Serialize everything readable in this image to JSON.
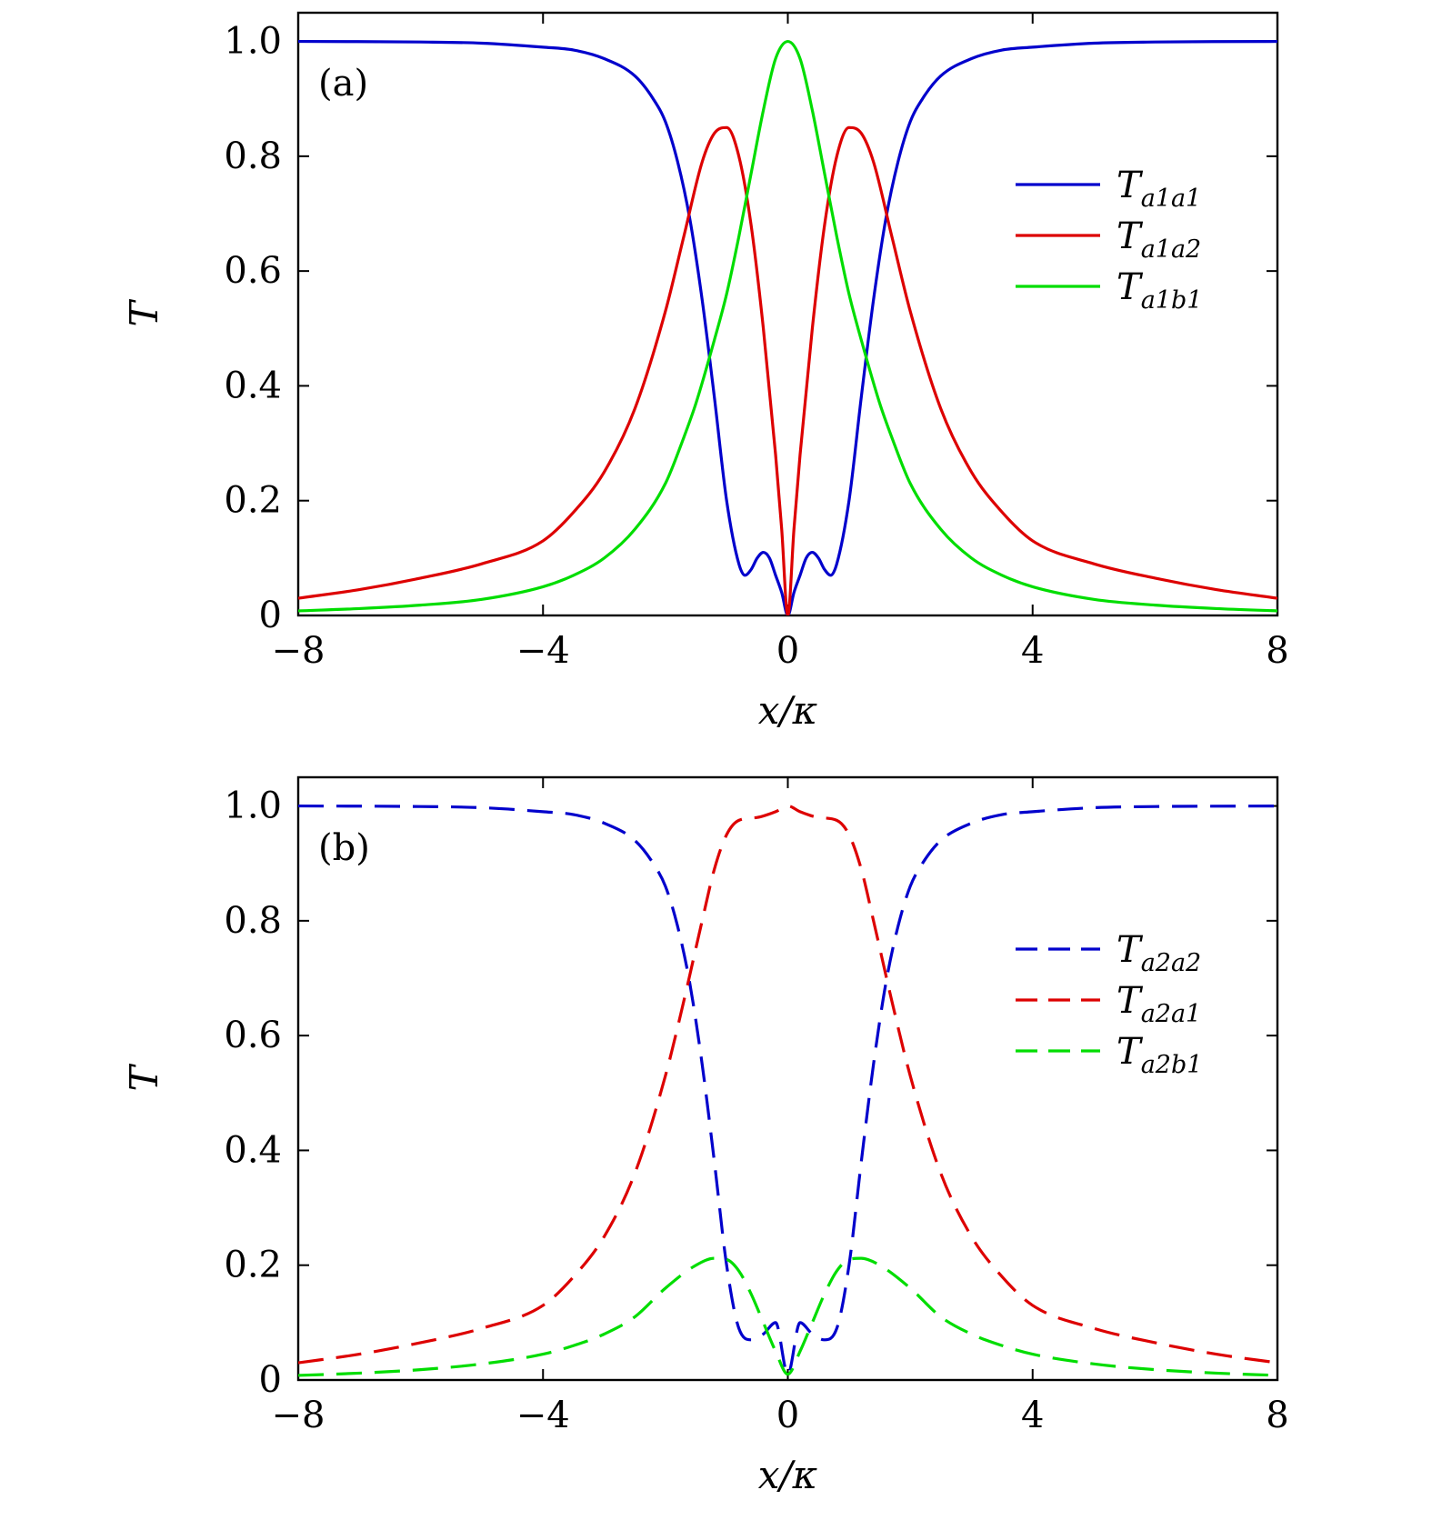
{
  "chart_data": [
    {
      "type": "line",
      "panel_label": "(a)",
      "xlabel": "x/κ",
      "ylabel": "T",
      "xlim": [
        -8,
        8
      ],
      "ylim": [
        0,
        1.05
      ],
      "xticks": [
        -8,
        -4,
        0,
        4,
        8
      ],
      "xtick_labels": [
        "−8",
        "−4",
        "0",
        "4",
        "8"
      ],
      "yticks": [
        0,
        0.2,
        0.4,
        0.6,
        0.8,
        1.0
      ],
      "ytick_labels": [
        "0",
        "0.2",
        "0.4",
        "0.6",
        "0.8",
        "1.0"
      ],
      "grid": false,
      "legend_position": "right",
      "series": [
        {
          "name": "T_{a1a1}",
          "name_main": "T",
          "name_sub": "a1a1",
          "color": "#0000cc",
          "dash": "solid",
          "x": [
            -8,
            -6,
            -5,
            -4,
            -3.5,
            -3,
            -2.5,
            -2.2,
            -2,
            -1.8,
            -1.6,
            -1.4,
            -1.2,
            -1,
            -0.8,
            -0.7,
            -0.6,
            -0.5,
            -0.4,
            -0.3,
            -0.2,
            -0.1,
            0,
            0.1,
            0.2,
            0.3,
            0.4,
            0.5,
            0.6,
            0.7,
            0.8,
            1,
            1.2,
            1.4,
            1.6,
            1.8,
            2,
            2.2,
            2.5,
            3,
            3.5,
            4,
            5,
            6,
            8
          ],
          "y": [
            1.0,
            0.999,
            0.997,
            0.99,
            0.985,
            0.97,
            0.94,
            0.9,
            0.86,
            0.79,
            0.69,
            0.55,
            0.38,
            0.2,
            0.09,
            0.07,
            0.08,
            0.1,
            0.11,
            0.1,
            0.07,
            0.04,
            0.0,
            0.04,
            0.07,
            0.1,
            0.11,
            0.1,
            0.08,
            0.07,
            0.09,
            0.2,
            0.38,
            0.55,
            0.69,
            0.79,
            0.86,
            0.9,
            0.94,
            0.97,
            0.985,
            0.99,
            0.997,
            0.999,
            1.0
          ]
        },
        {
          "name": "T_{a1a2}",
          "name_main": "T",
          "name_sub": "a1a2",
          "color": "#dd0000",
          "dash": "solid",
          "x": [
            -8,
            -7,
            -6,
            -5,
            -4,
            -3.5,
            -3,
            -2.5,
            -2,
            -1.7,
            -1.4,
            -1.2,
            -1,
            -0.8,
            -0.6,
            -0.4,
            -0.2,
            -0.1,
            0,
            0.1,
            0.2,
            0.4,
            0.6,
            0.8,
            1,
            1.2,
            1.4,
            1.7,
            2,
            2.5,
            3,
            3.5,
            4,
            5,
            6,
            7,
            8
          ],
          "y": [
            0.03,
            0.045,
            0.065,
            0.09,
            0.13,
            0.18,
            0.25,
            0.36,
            0.53,
            0.66,
            0.79,
            0.84,
            0.85,
            0.8,
            0.68,
            0.5,
            0.28,
            0.15,
            0.0,
            0.15,
            0.28,
            0.5,
            0.68,
            0.8,
            0.85,
            0.84,
            0.79,
            0.66,
            0.53,
            0.36,
            0.25,
            0.18,
            0.13,
            0.09,
            0.065,
            0.045,
            0.03
          ]
        },
        {
          "name": "T_{a1b1}",
          "name_main": "T",
          "name_sub": "a1b1",
          "color": "#00dd00",
          "dash": "solid",
          "x": [
            -8,
            -7,
            -6,
            -5,
            -4,
            -3.5,
            -3,
            -2.5,
            -2,
            -1.7,
            -1.5,
            -1.2,
            -1,
            -0.8,
            -0.6,
            -0.4,
            -0.2,
            0,
            0.2,
            0.4,
            0.6,
            0.8,
            1,
            1.2,
            1.5,
            1.7,
            2,
            2.5,
            3,
            3.5,
            4,
            5,
            6,
            7,
            8
          ],
          "y": [
            0.008,
            0.012,
            0.018,
            0.028,
            0.05,
            0.07,
            0.1,
            0.15,
            0.23,
            0.31,
            0.37,
            0.48,
            0.56,
            0.66,
            0.77,
            0.88,
            0.97,
            1.0,
            0.97,
            0.88,
            0.77,
            0.66,
            0.56,
            0.48,
            0.37,
            0.31,
            0.23,
            0.15,
            0.1,
            0.07,
            0.05,
            0.028,
            0.018,
            0.012,
            0.008
          ]
        }
      ]
    },
    {
      "type": "line",
      "panel_label": "(b)",
      "xlabel": "x/κ",
      "ylabel": "T",
      "xlim": [
        -8,
        8
      ],
      "ylim": [
        0,
        1.05
      ],
      "xticks": [
        -8,
        -4,
        0,
        4,
        8
      ],
      "xtick_labels": [
        "−8",
        "−4",
        "0",
        "4",
        "8"
      ],
      "yticks": [
        0,
        0.2,
        0.4,
        0.6,
        0.8,
        1.0
      ],
      "ytick_labels": [
        "0",
        "0.2",
        "0.4",
        "0.6",
        "0.8",
        "1.0"
      ],
      "grid": false,
      "legend_position": "right",
      "series": [
        {
          "name": "T_{a2a2}",
          "name_main": "T",
          "name_sub": "a2a2",
          "color": "#0000cc",
          "dash": "dashed",
          "x": [
            -8,
            -6,
            -5,
            -4,
            -3.5,
            -3,
            -2.5,
            -2.2,
            -2,
            -1.8,
            -1.6,
            -1.4,
            -1.2,
            -1,
            -0.8,
            -0.6,
            -0.4,
            -0.2,
            0,
            0.2,
            0.4,
            0.6,
            0.8,
            1,
            1.2,
            1.4,
            1.6,
            1.8,
            2,
            2.2,
            2.5,
            3,
            3.5,
            4,
            5,
            6,
            8
          ],
          "y": [
            1.0,
            0.999,
            0.997,
            0.99,
            0.985,
            0.97,
            0.94,
            0.9,
            0.86,
            0.79,
            0.69,
            0.55,
            0.38,
            0.2,
            0.09,
            0.07,
            0.08,
            0.1,
            0.01,
            0.1,
            0.08,
            0.07,
            0.09,
            0.2,
            0.38,
            0.55,
            0.69,
            0.79,
            0.86,
            0.9,
            0.94,
            0.97,
            0.985,
            0.99,
            0.997,
            0.999,
            1.0
          ]
        },
        {
          "name": "T_{a2a1}",
          "name_main": "T",
          "name_sub": "a2a1",
          "color": "#dd0000",
          "dash": "dashed",
          "x": [
            -8,
            -7,
            -6,
            -5,
            -4,
            -3.5,
            -3,
            -2.5,
            -2,
            -1.7,
            -1.4,
            -1.2,
            -1,
            -0.8,
            -0.5,
            -0.2,
            0,
            0.2,
            0.5,
            0.8,
            1,
            1.2,
            1.4,
            1.7,
            2,
            2.5,
            3,
            3.5,
            4,
            5,
            6,
            7,
            8
          ],
          "y": [
            0.03,
            0.045,
            0.065,
            0.09,
            0.13,
            0.18,
            0.25,
            0.36,
            0.53,
            0.66,
            0.8,
            0.89,
            0.95,
            0.975,
            0.98,
            0.99,
            1.0,
            0.99,
            0.98,
            0.975,
            0.95,
            0.89,
            0.8,
            0.66,
            0.53,
            0.36,
            0.25,
            0.18,
            0.13,
            0.09,
            0.065,
            0.045,
            0.03
          ]
        },
        {
          "name": "T_{a2b1}",
          "name_main": "T",
          "name_sub": "a2b1",
          "color": "#00dd00",
          "dash": "dashed",
          "x": [
            -8,
            -7,
            -6,
            -5,
            -4,
            -3.5,
            -3,
            -2.5,
            -2,
            -1.5,
            -1.2,
            -1,
            -0.8,
            -0.6,
            -0.4,
            -0.2,
            0,
            0.2,
            0.4,
            0.6,
            0.8,
            1,
            1.2,
            1.5,
            2,
            2.5,
            3,
            3.5,
            4,
            5,
            6,
            7,
            8
          ],
          "y": [
            0.008,
            0.012,
            0.018,
            0.028,
            0.045,
            0.06,
            0.08,
            0.11,
            0.16,
            0.2,
            0.212,
            0.21,
            0.19,
            0.15,
            0.1,
            0.05,
            0.01,
            0.05,
            0.1,
            0.15,
            0.19,
            0.21,
            0.212,
            0.2,
            0.16,
            0.11,
            0.08,
            0.06,
            0.045,
            0.028,
            0.018,
            0.012,
            0.008
          ]
        }
      ]
    }
  ]
}
